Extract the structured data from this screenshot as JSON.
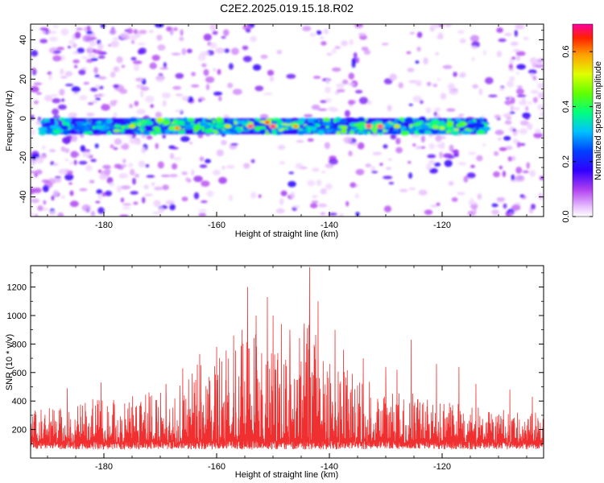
{
  "chart_data": [
    {
      "type": "heatmap",
      "title": "C2E2.2025.019.15.18.R02",
      "xlabel": "Height of straight line (km)",
      "ylabel": "Frequency (Hz)",
      "xlim": [
        -193,
        -102
      ],
      "ylim": [
        -50,
        48
      ],
      "xticks": [
        "-180",
        "-160",
        "-140",
        "-120"
      ],
      "yticks": [
        "-40",
        "-20",
        "0",
        "20",
        "40"
      ],
      "band_center_hz": -4,
      "band_x_range": [
        -191,
        -112
      ],
      "peak_locations": [
        {
          "x": -175,
          "y": -4,
          "amp": 0.55
        },
        {
          "x": -167,
          "y": -5,
          "amp": 0.6
        },
        {
          "x": -158,
          "y": -4,
          "amp": 0.55
        },
        {
          "x": -154,
          "y": -4,
          "amp": 0.7
        },
        {
          "x": -151,
          "y": -2,
          "amp": 0.65
        },
        {
          "x": -150,
          "y": -4,
          "amp": 0.72
        },
        {
          "x": -146,
          "y": -4,
          "amp": 0.6
        },
        {
          "x": -133,
          "y": -4,
          "amp": 0.7
        },
        {
          "x": -131,
          "y": -4,
          "amp": 0.7
        },
        {
          "x": -128,
          "y": -4,
          "amp": 0.55
        },
        {
          "x": -120,
          "y": -5,
          "amp": 0.5
        }
      ],
      "colorbar": {
        "label": "Normalized spectral amplitude",
        "range": [
          0.0,
          0.7
        ],
        "ticks": [
          "0.0",
          "0.2",
          "0.4",
          "0.6"
        ]
      },
      "grid": false
    },
    {
      "type": "line",
      "title": "",
      "xlabel": "Height of straight line (km)",
      "ylabel": "SNR (10 * v/v)",
      "xlim": [
        -193,
        -102
      ],
      "ylim": [
        0,
        1350
      ],
      "xticks": [
        "-180",
        "-160",
        "-140",
        "-120"
      ],
      "yticks": [
        "200",
        "400",
        "600",
        "800",
        "1000",
        "1200"
      ],
      "series_color": "#f03030",
      "noise_floor": 130,
      "envelope": [
        {
          "x": -193,
          "y": 380
        },
        {
          "x": -185,
          "y": 430
        },
        {
          "x": -180,
          "y": 480
        },
        {
          "x": -175,
          "y": 420
        },
        {
          "x": -170,
          "y": 500
        },
        {
          "x": -165,
          "y": 650
        },
        {
          "x": -160,
          "y": 750
        },
        {
          "x": -155,
          "y": 950
        },
        {
          "x": -150,
          "y": 900
        },
        {
          "x": -147,
          "y": 780
        },
        {
          "x": -144,
          "y": 1000
        },
        {
          "x": -140,
          "y": 700
        },
        {
          "x": -135,
          "y": 600
        },
        {
          "x": -130,
          "y": 520
        },
        {
          "x": -125,
          "y": 480
        },
        {
          "x": -120,
          "y": 440
        },
        {
          "x": -115,
          "y": 380
        },
        {
          "x": -110,
          "y": 340
        },
        {
          "x": -102,
          "y": 320
        }
      ],
      "peaks": [
        {
          "x": -186.5,
          "y": 490
        },
        {
          "x": -180.5,
          "y": 530
        },
        {
          "x": -172,
          "y": 460
        },
        {
          "x": -169,
          "y": 520
        },
        {
          "x": -166,
          "y": 630
        },
        {
          "x": -163,
          "y": 730
        },
        {
          "x": -160,
          "y": 780
        },
        {
          "x": -157,
          "y": 860
        },
        {
          "x": -155.5,
          "y": 900
        },
        {
          "x": -154.5,
          "y": 1200
        },
        {
          "x": -153,
          "y": 1000
        },
        {
          "x": -151,
          "y": 1130
        },
        {
          "x": -150,
          "y": 1000
        },
        {
          "x": -148.5,
          "y": 940
        },
        {
          "x": -147,
          "y": 900
        },
        {
          "x": -144.5,
          "y": 880
        },
        {
          "x": -143.5,
          "y": 1340
        },
        {
          "x": -142,
          "y": 1100
        },
        {
          "x": -139,
          "y": 900
        },
        {
          "x": -137.5,
          "y": 760
        },
        {
          "x": -134,
          "y": 700
        },
        {
          "x": -130,
          "y": 640
        },
        {
          "x": -128,
          "y": 620
        },
        {
          "x": -125.5,
          "y": 830
        },
        {
          "x": -121,
          "y": 660
        },
        {
          "x": -117,
          "y": 640
        },
        {
          "x": -114,
          "y": 520
        },
        {
          "x": -108,
          "y": 480
        },
        {
          "x": -104,
          "y": 430
        }
      ]
    }
  ]
}
